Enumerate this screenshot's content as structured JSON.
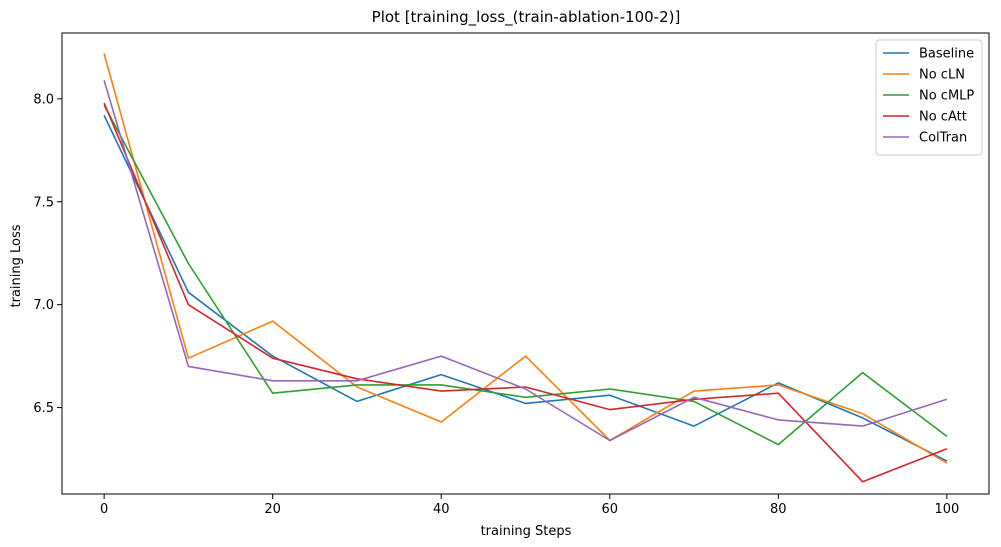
{
  "chart_data": {
    "type": "line",
    "title": "Plot [training_loss_(train-ablation-100-2)]",
    "xlabel": "training Steps",
    "ylabel": "training Loss",
    "x": [
      0,
      10,
      20,
      30,
      40,
      50,
      60,
      70,
      80,
      90,
      100
    ],
    "xlim": [
      -5,
      105
    ],
    "ylim": [
      6.08,
      8.32
    ],
    "xticks": [
      0,
      20,
      40,
      60,
      80,
      100
    ],
    "yticks": [
      6.5,
      7.0,
      7.5,
      8.0
    ],
    "xtick_labels": [
      "0",
      "20",
      "40",
      "60",
      "80",
      "100"
    ],
    "ytick_labels": [
      "6.5",
      "7.0",
      "7.5",
      "8.0"
    ],
    "grid": false,
    "legend_position": "top-right",
    "series": [
      {
        "name": "Baseline",
        "color": "#1f77b4",
        "values": [
          7.92,
          7.06,
          6.75,
          6.53,
          6.66,
          6.52,
          6.56,
          6.41,
          6.62,
          6.45,
          6.24
        ]
      },
      {
        "name": "No cLN",
        "color": "#ff7f0e",
        "values": [
          8.22,
          6.74,
          6.92,
          6.6,
          6.43,
          6.75,
          6.34,
          6.58,
          6.61,
          6.47,
          6.23
        ]
      },
      {
        "name": "No cMLP",
        "color": "#2ca02c",
        "values": [
          7.97,
          7.2,
          6.57,
          6.61,
          6.61,
          6.55,
          6.59,
          6.53,
          6.32,
          6.67,
          6.36
        ]
      },
      {
        "name": "No cAtt",
        "color": "#d62728",
        "values": [
          7.98,
          7.0,
          6.74,
          6.64,
          6.58,
          6.6,
          6.49,
          6.54,
          6.57,
          6.14,
          6.3
        ]
      },
      {
        "name": "ColTran",
        "color": "#9467bd",
        "values": [
          8.09,
          6.7,
          6.63,
          6.63,
          6.75,
          6.59,
          6.34,
          6.55,
          6.44,
          6.41,
          6.54
        ]
      }
    ]
  }
}
